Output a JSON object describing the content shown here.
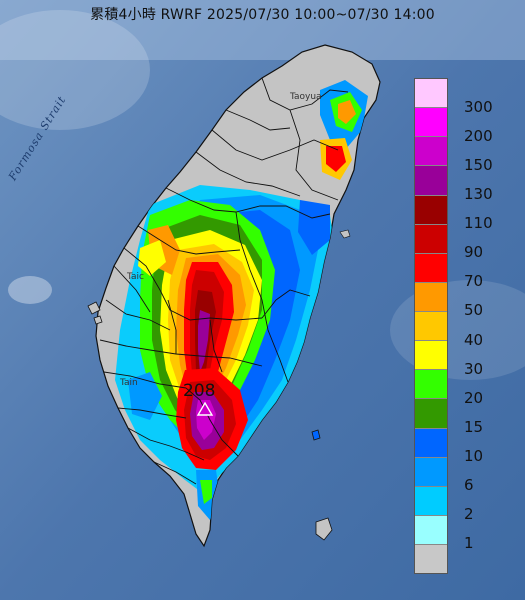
{
  "title": "累積4小時 RWRF 2025/07/30 10:00~07/30 14:00",
  "sea_label": "Formosa Strait",
  "place_labels": [
    "Taoyua",
    "Taic",
    "Tain"
  ],
  "max_value": "208",
  "legend": {
    "labels": [
      "300",
      "200",
      "150",
      "130",
      "110",
      "90",
      "70",
      "50",
      "40",
      "30",
      "20",
      "15",
      "10",
      "6",
      "2",
      "1"
    ],
    "colors": [
      "#ffc8ff",
      "#ff00ff",
      "#cc00cc",
      "#990099",
      "#990000",
      "#cc0000",
      "#ff0000",
      "#ff9900",
      "#ffc800",
      "#ffff00",
      "#33ff00",
      "#339900",
      "#0066ff",
      "#0099ff",
      "#00ccff",
      "#99ffff",
      "#c8c8c8"
    ]
  },
  "colors": {
    "sea": "#4a72a8",
    "land": "#bfbfbf",
    "boundary": "#111111"
  }
}
